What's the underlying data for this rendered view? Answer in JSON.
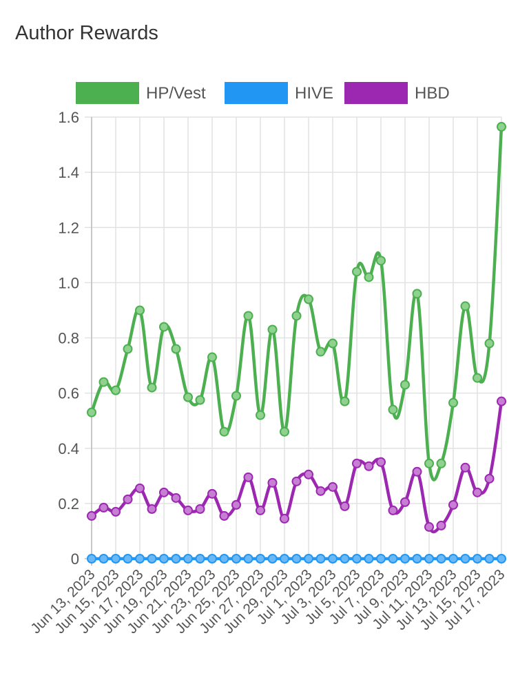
{
  "widget": {
    "title": "Author Rewards"
  },
  "chart_data": {
    "type": "line",
    "title": "Author Rewards",
    "xlabel": "",
    "ylabel": "",
    "ylim": [
      0,
      1.6
    ],
    "y_ticks": [
      "0",
      "0.2",
      "0.4",
      "0.6",
      "0.8",
      "1.0",
      "1.2",
      "1.4",
      "1.6"
    ],
    "grid": true,
    "legend_position": "top",
    "x_tick_labels": [
      "Jun 13, 2023",
      "Jun 15, 2023",
      "Jun 17, 2023",
      "Jun 19, 2023",
      "Jun 21, 2023",
      "Jun 23, 2023",
      "Jun 25, 2023",
      "Jun 27, 2023",
      "Jun 29, 2023",
      "Jul 1, 2023",
      "Jul 3, 2023",
      "Jul 5, 2023",
      "Jul 7, 2023",
      "Jul 9, 2023",
      "Jul 11, 2023",
      "Jul 13, 2023",
      "Jul 15, 2023",
      "Jul 17, 2023"
    ],
    "x": [
      "2023-06-13",
      "2023-06-14",
      "2023-06-15",
      "2023-06-16",
      "2023-06-17",
      "2023-06-18",
      "2023-06-19",
      "2023-06-20",
      "2023-06-21",
      "2023-06-22",
      "2023-06-23",
      "2023-06-24",
      "2023-06-25",
      "2023-06-26",
      "2023-06-27",
      "2023-06-28",
      "2023-06-29",
      "2023-06-30",
      "2023-07-01",
      "2023-07-02",
      "2023-07-03",
      "2023-07-04",
      "2023-07-05",
      "2023-07-06",
      "2023-07-07",
      "2023-07-08",
      "2023-07-09",
      "2023-07-10",
      "2023-07-11",
      "2023-07-12",
      "2023-07-13",
      "2023-07-14",
      "2023-07-15",
      "2023-07-16",
      "2023-07-17"
    ],
    "series": [
      {
        "name": "HP/Vest",
        "color": "#4caf50",
        "values": [
          0.53,
          0.64,
          0.61,
          0.76,
          0.9,
          0.62,
          0.84,
          0.76,
          0.585,
          0.575,
          0.73,
          0.46,
          0.59,
          0.88,
          0.52,
          0.83,
          0.46,
          0.88,
          0.94,
          0.75,
          0.78,
          0.57,
          1.04,
          1.02,
          1.08,
          0.54,
          0.63,
          0.96,
          0.345,
          0.345,
          0.565,
          0.915,
          0.655,
          0.78,
          1.565
        ]
      },
      {
        "name": "HIVE",
        "color": "#2196f3",
        "values": [
          0,
          0,
          0,
          0,
          0,
          0,
          0,
          0,
          0,
          0,
          0,
          0,
          0,
          0,
          0,
          0,
          0,
          0,
          0,
          0,
          0,
          0,
          0,
          0,
          0,
          0,
          0,
          0,
          0,
          0,
          0,
          0,
          0,
          0,
          0
        ]
      },
      {
        "name": "HBD",
        "color": "#9c27b0",
        "values": [
          0.155,
          0.185,
          0.17,
          0.215,
          0.255,
          0.18,
          0.24,
          0.22,
          0.175,
          0.18,
          0.235,
          0.155,
          0.195,
          0.295,
          0.175,
          0.275,
          0.145,
          0.28,
          0.305,
          0.245,
          0.26,
          0.19,
          0.345,
          0.335,
          0.35,
          0.175,
          0.205,
          0.315,
          0.115,
          0.12,
          0.195,
          0.33,
          0.24,
          0.29,
          0.57
        ]
      }
    ]
  }
}
